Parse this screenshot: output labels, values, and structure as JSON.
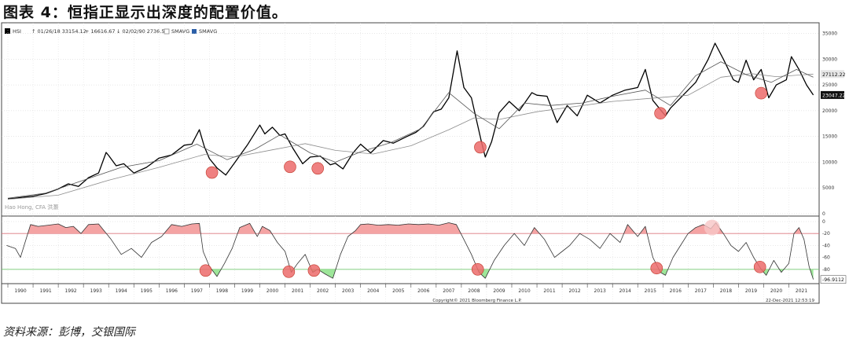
{
  "figure": {
    "title": "图表 4：恒指正显示出深度的配置价值。",
    "source": "资料来源：彭博，交银国际"
  },
  "header": {
    "series_label": "HSI",
    "high_text": "01/26/18 33154.12",
    "avg_text": "16616.67",
    "low_text": "02/02/90 2736.55",
    "sma1_label": "SMAVG",
    "sma2_label": "SMAVG"
  },
  "watermark": "Hao Hong, CFA 洪灏",
  "copyright": "Copyright© 2021 Bloomberg Finance L.P.",
  "timestamp": "22-Dec-2021 12:53:19",
  "colors": {
    "price": "#000000",
    "ma_long": "#8c8c8c",
    "ma_short": "#555555",
    "upper_fill": "#f4a3a3",
    "upper_line": "#d9707a",
    "lower_fill": "#9ee69a",
    "lower_line": "#6cc46a",
    "marker": "#ec6b6b",
    "marker_stroke": "#c0392b"
  },
  "chart_data": [
    {
      "type": "line",
      "title": "",
      "y_ticks": [
        0,
        5000,
        10000,
        15000,
        20000,
        25000,
        30000,
        35000
      ],
      "ylim": [
        0,
        36000
      ],
      "xlim": [
        1989.75,
        2022.2
      ],
      "last_labels": [
        "27112.22",
        "23047.22"
      ],
      "series": [
        {
          "name": "HSI",
          "x": [
            1990.0,
            1990.3,
            1990.6,
            1991.0,
            1991.5,
            1992.0,
            1992.4,
            1992.8,
            1993.2,
            1993.6,
            1993.9,
            1994.0,
            1994.3,
            1994.6,
            1995.0,
            1995.5,
            1996.0,
            1996.5,
            1997.0,
            1997.3,
            1997.6,
            1997.8,
            1998.0,
            1998.3,
            1998.65,
            1999.0,
            1999.5,
            2000.0,
            2000.2,
            2000.5,
            2000.8,
            2001.0,
            2001.3,
            2001.7,
            2002.0,
            2002.4,
            2002.8,
            2003.0,
            2003.3,
            2003.7,
            2004.0,
            2004.4,
            2004.9,
            2005.3,
            2005.8,
            2006.2,
            2006.5,
            2006.9,
            2007.2,
            2007.5,
            2007.83,
            2008.1,
            2008.4,
            2008.8,
            2008.95,
            2009.2,
            2009.5,
            2009.9,
            2010.3,
            2010.8,
            2011.0,
            2011.4,
            2011.8,
            2012.2,
            2012.6,
            2013.0,
            2013.5,
            2014.0,
            2014.5,
            2015.0,
            2015.3,
            2015.6,
            2016.1,
            2016.3,
            2016.8,
            2017.3,
            2017.8,
            2018.07,
            2018.4,
            2018.8,
            2019.0,
            2019.3,
            2019.6,
            2019.9,
            2020.2,
            2020.5,
            2020.9,
            2021.1,
            2021.4,
            2021.7,
            2021.97
          ],
          "values": [
            2900,
            3000,
            3200,
            3400,
            3900,
            4800,
            5800,
            5300,
            7000,
            7900,
            11900,
            11300,
            9300,
            9700,
            7900,
            9000,
            10800,
            11400,
            13300,
            13500,
            16300,
            13000,
            10700,
            8900,
            7500,
            9900,
            13300,
            17200,
            15500,
            16800,
            15200,
            15500,
            12800,
            9700,
            11000,
            11200,
            9500,
            9800,
            8700,
            11800,
            13500,
            11800,
            14200,
            13700,
            14900,
            15800,
            17000,
            19800,
            20300,
            22500,
            31600,
            24500,
            22500,
            13900,
            11000,
            14000,
            19600,
            21800,
            20000,
            23500,
            23000,
            22800,
            17700,
            21000,
            19000,
            23000,
            21500,
            23000,
            24000,
            24500,
            28000,
            22000,
            19000,
            20500,
            23000,
            25500,
            30000,
            33100,
            30000,
            26000,
            25500,
            29800,
            26000,
            28000,
            22500,
            25000,
            26000,
            30500,
            28000,
            25000,
            23047
          ]
        },
        {
          "name": "SMAVG",
          "x": [
            1990.0,
            1992.0,
            1994.0,
            1996.0,
            1997.8,
            1999.0,
            2000.5,
            2001.8,
            2003.0,
            2004.5,
            2006.0,
            2007.5,
            2008.5,
            2009.5,
            2011.0,
            2012.5,
            2014.0,
            2015.5,
            2017.0,
            2018.3,
            2019.5,
            2020.5,
            2021.97
          ],
          "values": [
            2800,
            3600,
            6500,
            9000,
            11500,
            11000,
            12400,
            13600,
            12300,
            11600,
            13200,
            16300,
            18600,
            18300,
            19800,
            20800,
            21800,
            22400,
            23000,
            26500,
            27200,
            26600,
            27112
          ]
        },
        {
          "name": "SMAVG",
          "x": [
            1990.0,
            1991.5,
            1993.0,
            1994.5,
            1996.0,
            1997.5,
            1998.7,
            1999.8,
            2000.8,
            2002.0,
            2003.0,
            2004.0,
            2005.2,
            2006.4,
            2007.5,
            2008.5,
            2009.5,
            2010.5,
            2011.5,
            2012.8,
            2014.0,
            2015.3,
            2016.3,
            2017.3,
            2018.3,
            2019.3,
            2020.3,
            2021.3,
            2021.97
          ],
          "values": [
            3000,
            4000,
            6500,
            9000,
            10300,
            13500,
            10500,
            12500,
            15300,
            11800,
            10000,
            12000,
            13800,
            16500,
            23500,
            19500,
            16500,
            21500,
            21000,
            21500,
            22800,
            24000,
            21000,
            26800,
            29500,
            27000,
            25500,
            28000,
            26500
          ]
        }
      ],
      "markers": {
        "x": [
          1998.1,
          2001.2,
          2002.3,
          2008.75,
          2015.9,
          2019.9
        ],
        "values": [
          8000,
          9100,
          8800,
          12900,
          19500,
          23400
        ]
      }
    },
    {
      "type": "line",
      "title": "",
      "y_ticks": [
        0,
        -20,
        -40,
        -60,
        -80
      ],
      "ylim": [
        -100,
        0
      ],
      "upper_threshold": -20,
      "lower_threshold": -80,
      "last_label": "-96.9112",
      "series": [
        {
          "name": "Oscillator",
          "x": [
            1989.95,
            1990.3,
            1990.5,
            1990.9,
            1991.2,
            1991.6,
            1992.0,
            1992.3,
            1992.6,
            1992.9,
            1993.2,
            1993.6,
            1994.1,
            1994.5,
            1994.9,
            1995.3,
            1995.7,
            1996.1,
            1996.5,
            1996.9,
            1997.3,
            1997.6,
            1997.75,
            1998.0,
            1998.3,
            1998.6,
            1998.9,
            1999.2,
            1999.6,
            1999.9,
            2000.1,
            2000.4,
            2000.7,
            2001.0,
            2001.25,
            2001.5,
            2001.8,
            2002.1,
            2002.3,
            2002.6,
            2002.9,
            2003.2,
            2003.5,
            2003.8,
            2004.0,
            2004.3,
            2004.7,
            2005.1,
            2005.5,
            2005.9,
            2006.3,
            2006.7,
            2007.1,
            2007.5,
            2007.8,
            2008.1,
            2008.4,
            2008.7,
            2008.95,
            2009.3,
            2009.7,
            2010.1,
            2010.5,
            2010.9,
            2011.3,
            2011.7,
            2012.0,
            2012.3,
            2012.7,
            2013.1,
            2013.5,
            2013.9,
            2014.3,
            2014.6,
            2015.0,
            2015.3,
            2015.6,
            2015.9,
            2016.1,
            2016.4,
            2016.7,
            2017.0,
            2017.3,
            2017.6,
            2017.9,
            2018.1,
            2018.4,
            2018.7,
            2019.0,
            2019.3,
            2019.6,
            2019.9,
            2020.1,
            2020.4,
            2020.7,
            2021.0,
            2021.2,
            2021.4,
            2021.6,
            2021.8,
            2021.97
          ],
          "values": [
            -40,
            -45,
            -60,
            -5,
            -8,
            -6,
            -4,
            -10,
            -8,
            -20,
            -5,
            -4,
            -30,
            -55,
            -45,
            -60,
            -35,
            -25,
            -5,
            -8,
            -4,
            -3,
            -50,
            -75,
            -92,
            -70,
            -45,
            -10,
            -3,
            -25,
            -8,
            -15,
            -35,
            -50,
            -85,
            -70,
            -55,
            -85,
            -80,
            -88,
            -95,
            -55,
            -25,
            -15,
            -5,
            -4,
            -6,
            -5,
            -6,
            -4,
            -5,
            -4,
            -6,
            -2,
            -5,
            -30,
            -55,
            -85,
            -95,
            -65,
            -40,
            -20,
            -40,
            -10,
            -30,
            -60,
            -50,
            -40,
            -20,
            -30,
            -45,
            -20,
            -35,
            -5,
            -25,
            -8,
            -60,
            -85,
            -90,
            -60,
            -40,
            -20,
            -10,
            -5,
            -12,
            -2,
            -20,
            -40,
            -50,
            -35,
            -60,
            -80,
            -90,
            -65,
            -85,
            -70,
            -20,
            -10,
            -30,
            -75,
            -96.9
          ]
        }
      ],
      "markers": {
        "x": [
          1997.85,
          2001.15,
          2002.15,
          2008.65,
          2015.75,
          2017.95,
          2019.85
        ],
        "values": [
          -82,
          -84,
          -82,
          -80,
          -78,
          -10,
          -76
        ]
      }
    }
  ],
  "x_axis": {
    "years": [
      "1990",
      "1991",
      "1992",
      "1993",
      "1994",
      "1995",
      "1996",
      "1997",
      "1998",
      "1999",
      "2000",
      "2001",
      "2002",
      "2003",
      "2004",
      "2005",
      "2006",
      "2007",
      "2008",
      "2009",
      "2010",
      "2011",
      "2012",
      "2013",
      "2014",
      "2015",
      "2016",
      "2017",
      "2018",
      "2019",
      "2020",
      "2021"
    ]
  }
}
